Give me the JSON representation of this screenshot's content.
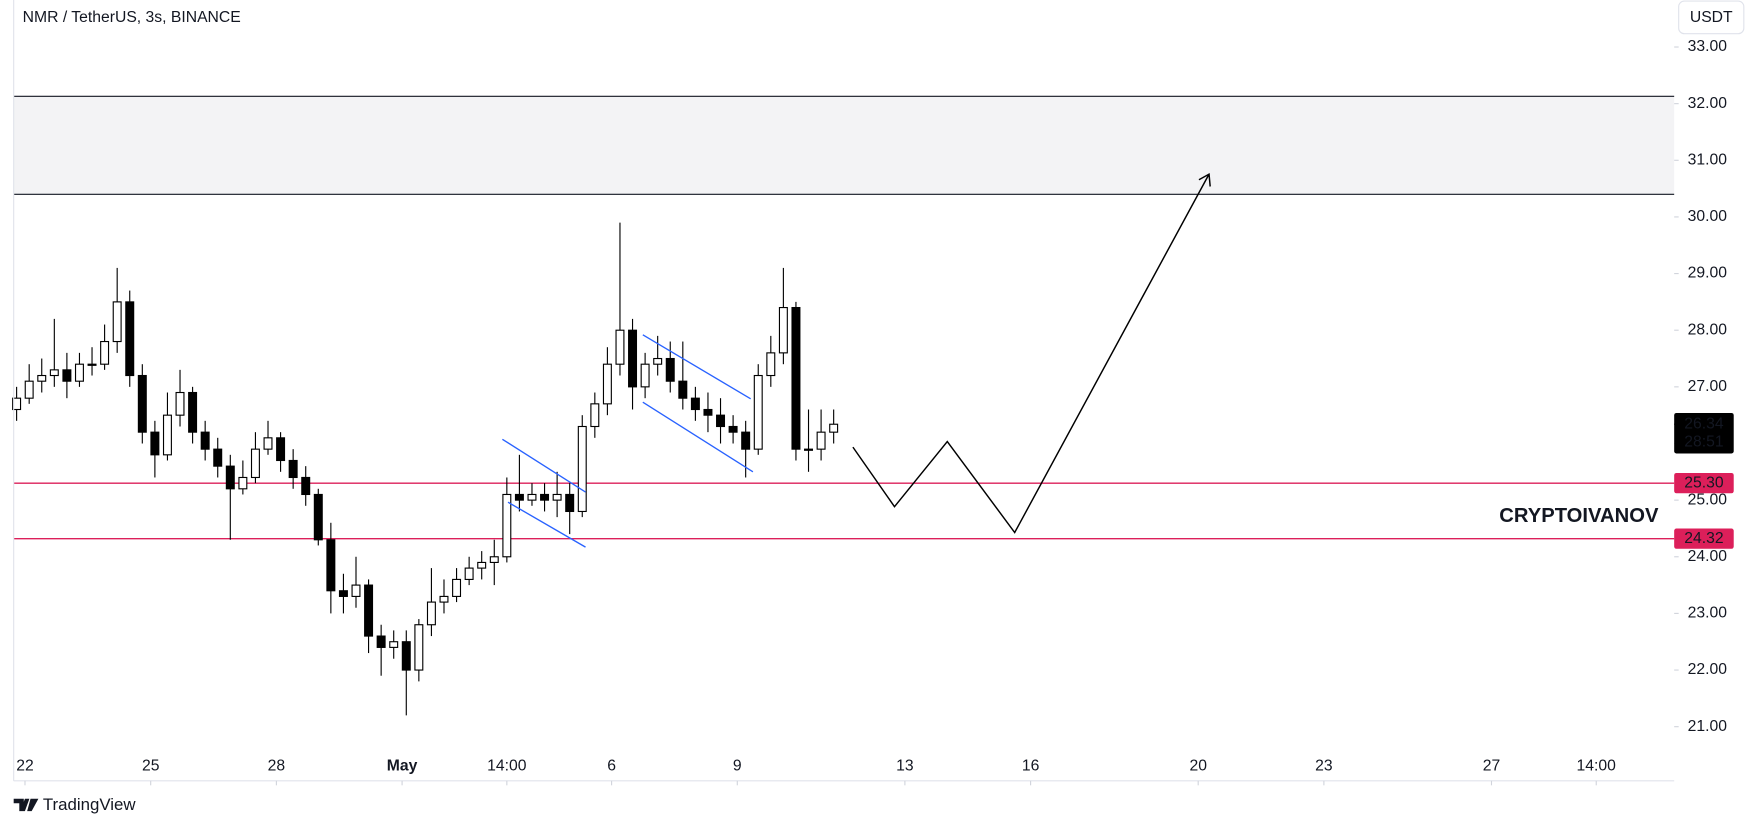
{
  "chart_data": {
    "type": "candlestick",
    "title": "NMR / TetherUS, 3s, BINANCE",
    "currency": "USDT",
    "watermark": "CRYPTOIVANOV",
    "brand": "TradingView",
    "up_color": "#ffffff",
    "down_color": "#000000",
    "border_color": "#000000",
    "x": [
      -0.2,
      0.1,
      0.4,
      0.7,
      1.0,
      1.3,
      1.6,
      1.9,
      2.2,
      2.5,
      2.8,
      3.1,
      3.4,
      3.7,
      4.0,
      4.3,
      4.6,
      4.9,
      5.2,
      5.5,
      5.8,
      6.1,
      6.4,
      6.7,
      7.0,
      7.3,
      7.6,
      7.9,
      8.2,
      8.5,
      8.8,
      9.1,
      9.4,
      9.7,
      10.0,
      10.3,
      10.6,
      10.9,
      11.2,
      11.5,
      11.8,
      12.1,
      12.4,
      12.7,
      13.0,
      13.3,
      13.6,
      13.9,
      14.2,
      14.5,
      14.8,
      15.1,
      15.4,
      15.7,
      16.0,
      16.3,
      16.6,
      16.9,
      17.2,
      17.5,
      17.8,
      18.1,
      18.4,
      18.7,
      19.0,
      19.3
    ],
    "open": [
      26.6,
      26.8,
      27.1,
      27.2,
      27.3,
      27.1,
      27.4,
      27.4,
      27.8,
      28.5,
      27.2,
      26.2,
      25.8,
      26.5,
      26.9,
      26.2,
      25.9,
      25.6,
      25.2,
      25.4,
      25.9,
      26.1,
      25.7,
      25.4,
      25.1,
      24.3,
      23.4,
      23.3,
      23.5,
      22.6,
      22.4,
      22.5,
      22.0,
      22.8,
      23.2,
      23.3,
      23.6,
      23.8,
      23.9,
      24.0,
      25.1,
      25.0,
      25.1,
      25.0,
      25.1,
      24.8,
      26.3,
      26.7,
      27.4,
      28.0,
      27.0,
      27.4,
      27.5,
      27.1,
      26.8,
      26.6,
      26.5,
      26.3,
      26.2,
      25.9,
      27.2,
      27.6,
      28.4,
      25.9,
      25.9,
      26.2
    ],
    "high": [
      27.0,
      27.4,
      27.5,
      28.2,
      27.6,
      27.6,
      27.7,
      28.1,
      29.1,
      28.7,
      27.4,
      26.4,
      26.9,
      27.3,
      27.0,
      26.4,
      26.1,
      25.8,
      25.7,
      26.2,
      26.4,
      26.2,
      25.9,
      25.6,
      25.2,
      24.6,
      23.7,
      24.0,
      23.6,
      22.8,
      22.7,
      22.7,
      22.9,
      23.8,
      23.6,
      23.8,
      24.0,
      24.1,
      24.3,
      25.4,
      25.8,
      25.3,
      25.3,
      25.5,
      25.3,
      26.5,
      26.9,
      27.7,
      29.9,
      28.2,
      27.6,
      27.9,
      27.8,
      27.8,
      27.0,
      26.9,
      26.8,
      26.5,
      26.4,
      27.4,
      27.9,
      29.1,
      28.5,
      26.6,
      26.6,
      26.6
    ],
    "low": [
      26.4,
      26.7,
      26.9,
      27.0,
      26.8,
      27.0,
      27.2,
      27.3,
      27.6,
      27.0,
      26.0,
      25.4,
      25.7,
      26.3,
      26.0,
      25.7,
      25.4,
      24.3,
      25.1,
      25.3,
      25.8,
      25.5,
      25.2,
      24.9,
      24.2,
      23.0,
      23.0,
      23.1,
      22.3,
      21.9,
      22.2,
      21.2,
      21.8,
      22.6,
      23.0,
      23.2,
      23.5,
      23.6,
      23.5,
      23.9,
      24.8,
      24.9,
      24.8,
      24.7,
      24.4,
      24.7,
      26.1,
      26.5,
      27.2,
      26.6,
      26.8,
      27.2,
      26.9,
      26.6,
      26.4,
      26.2,
      26.0,
      26.0,
      25.4,
      25.8,
      27.0,
      27.4,
      25.7,
      25.5,
      25.7,
      26.0
    ],
    "close": [
      26.8,
      27.1,
      27.2,
      27.3,
      27.1,
      27.4,
      27.4,
      27.8,
      28.5,
      27.2,
      26.2,
      25.8,
      26.5,
      26.9,
      26.2,
      25.9,
      25.6,
      25.2,
      25.4,
      25.9,
      26.1,
      25.7,
      25.4,
      25.1,
      24.3,
      23.4,
      23.3,
      23.5,
      22.6,
      22.4,
      22.5,
      22.0,
      22.8,
      23.2,
      23.3,
      23.6,
      23.8,
      23.9,
      24.0,
      25.1,
      25.0,
      25.1,
      25.0,
      25.1,
      24.8,
      26.3,
      26.7,
      27.4,
      28.0,
      27.0,
      27.4,
      27.5,
      27.1,
      26.8,
      26.6,
      26.5,
      26.3,
      26.2,
      25.9,
      27.2,
      27.6,
      28.4,
      25.9,
      25.9,
      26.2,
      26.34
    ],
    "xlim": [
      -0.27,
      39.36
    ],
    "ylim": [
      20.58,
      33.83
    ],
    "xticks": [
      {
        "value": 0,
        "label": "22"
      },
      {
        "value": 3,
        "label": "25"
      },
      {
        "value": 6,
        "label": "28"
      },
      {
        "value": 9,
        "label": "May"
      },
      {
        "value": 11.5,
        "label": "14:00"
      },
      {
        "value": 14,
        "label": "6"
      },
      {
        "value": 17,
        "label": "9"
      },
      {
        "value": 21,
        "label": "13"
      },
      {
        "value": 24,
        "label": "16"
      },
      {
        "value": 28,
        "label": "20"
      },
      {
        "value": 31,
        "label": "23"
      },
      {
        "value": 35,
        "label": "27"
      },
      {
        "value": 37.5,
        "label": "14:00"
      }
    ],
    "yticks": [
      {
        "value": 21,
        "label": "21.00"
      },
      {
        "value": 22,
        "label": "22.00"
      },
      {
        "value": 23,
        "label": "23.00"
      },
      {
        "value": 24,
        "label": "24.00"
      },
      {
        "value": 25,
        "label": "25.00"
      },
      {
        "value": 26,
        "label": "26.00"
      },
      {
        "value": 27,
        "label": "27.00"
      },
      {
        "value": 28,
        "label": "28.00"
      },
      {
        "value": 29,
        "label": "29.00"
      },
      {
        "value": 30,
        "label": "30.00"
      },
      {
        "value": 31,
        "label": "31.00"
      },
      {
        "value": 32,
        "label": "32.00"
      },
      {
        "value": 33,
        "label": "33.00"
      }
    ],
    "zone": [
      30.4,
      32.13
    ],
    "levels": [
      {
        "value": 25.3,
        "label": "25.30"
      },
      {
        "value": 24.32,
        "label": "24.32"
      }
    ],
    "level_color": "#dc1f5a",
    "last_price": {
      "value": 26.34,
      "label": "26.34"
    },
    "countdown": "28:51"
  }
}
